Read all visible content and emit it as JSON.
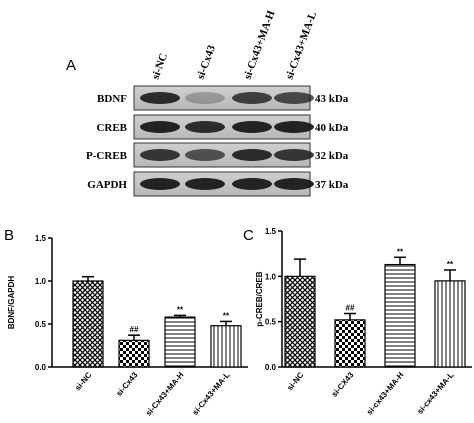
{
  "panel_a": {
    "label": "A",
    "lanes": [
      "si-NC",
      "si-Cx43",
      "si-Cx43+MA-H",
      "si-Cx43+MA-L"
    ],
    "rows": [
      {
        "protein": "BDNF",
        "size": "43 kDa"
      },
      {
        "protein": "CREB",
        "size": "40 kDa"
      },
      {
        "protein": "P-CREB",
        "size": "32 kDa"
      },
      {
        "protein": "GAPDH",
        "size": "37 kDa"
      }
    ]
  },
  "chart_data": [
    {
      "type": "bar",
      "panel_label": "B",
      "y_label": "BDNF/GAPDH",
      "categories": [
        "si-NC",
        "si-Cx43",
        "si-Cx43+MA-H",
        "si-Cx43+MA-L"
      ],
      "values": [
        1.0,
        0.31,
        0.58,
        0.48
      ],
      "errors": [
        0.05,
        0.06,
        0.02,
        0.05
      ],
      "annotations": [
        null,
        "##",
        "**",
        "**"
      ],
      "patterns": [
        "crosshatch",
        "checker",
        "horizontal",
        "vertical"
      ],
      "ylim": [
        0,
        1.5
      ],
      "yticks": [
        {
          "value": 0,
          "label": "0.0"
        },
        {
          "value": 0.5,
          "label": "0.5"
        },
        {
          "value": 1,
          "label": "1.0"
        },
        {
          "value": 1.5,
          "label": "1.5"
        }
      ]
    },
    {
      "type": "bar",
      "panel_label": "C",
      "y_label": "p-CREB/CREB",
      "categories": [
        "si-NC",
        "si-CX43",
        "si-cx43+MA-H",
        "si-cx43+MA-L"
      ],
      "values": [
        1.0,
        0.52,
        1.13,
        0.95
      ],
      "errors": [
        0.19,
        0.07,
        0.08,
        0.12
      ],
      "annotations": [
        null,
        "##",
        "**",
        "**"
      ],
      "patterns": [
        "crosshatch",
        "checker",
        "horizontal",
        "vertical"
      ],
      "ylim": [
        0,
        1.5
      ],
      "yticks": [
        {
          "value": 0,
          "label": "0.0"
        },
        {
          "value": 0.5,
          "label": "0.5"
        },
        {
          "value": 1,
          "label": "1.0"
        },
        {
          "value": 1.5,
          "label": "1.5"
        }
      ]
    }
  ]
}
